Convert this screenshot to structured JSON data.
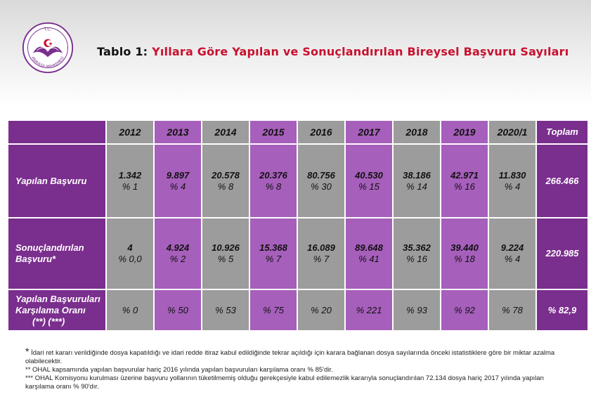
{
  "logo": {
    "top_text": "T.C.",
    "bottom_text": "ANAYASA MAHKEMESİ"
  },
  "title": {
    "prefix": "Tablo 1:",
    "main": "Yıllara Göre Yapılan ve Sonuçlandırılan Bireysel Başvuru Sayıları"
  },
  "table": {
    "years": [
      "2012",
      "2013",
      "2014",
      "2015",
      "2016",
      "2017",
      "2018",
      "2019",
      "2020/1"
    ],
    "total_header": "Toplam",
    "rows": [
      {
        "label": "Yapılan Başvuru",
        "counts": [
          "1.342",
          "9.897",
          "20.578",
          "20.376",
          "80.756",
          "40.530",
          "38.186",
          "42.971",
          "11.830"
        ],
        "percents": [
          "% 1",
          "% 4",
          "% 8",
          "% 8",
          "% 30",
          "% 15",
          "% 14",
          "% 16",
          "% 4"
        ],
        "total": "266.466"
      },
      {
        "label": "Sonuçlandırılan Başvuru*",
        "counts": [
          "4",
          "4.924",
          "10.926",
          "15.368",
          "16.089",
          "89.648",
          "35.362",
          "39.440",
          "9.224"
        ],
        "percents": [
          "% 0,0",
          "% 2",
          "% 5",
          "% 7",
          "% 7",
          "% 41",
          "% 16",
          "% 18",
          "% 4"
        ],
        "total": "220.985"
      },
      {
        "label": "Yapılan Başvuruları Karşılama Oranı",
        "label_sub": "(**) (***)",
        "values": [
          "% 0",
          "% 50",
          "% 53",
          "% 75",
          "% 20",
          "% 221",
          "% 93",
          "% 92",
          "% 78"
        ],
        "total": "% 82,9"
      }
    ]
  },
  "footnotes": {
    "f1_star": "*",
    "f1": "İdari ret kararı verildiğinde dosya kapatıldığı ve idari redde itiraz kabul edildiğinde tekrar açıldığı için karara bağlanan dosya sayılarında önceki istatistiklere göre bir miktar azalma olabilecektir.",
    "f2": "** OHAL kapsamında yapılan başvurular hariç 2016 yılında yapılan başvuruları karşılama oranı % 85'dir.",
    "f3": "*** OHAL Komisyonu kurulması üzerine başvuru yollarının tüketilmemiş olduğu gerekçesiyle kabul edilemezlik kararıyla sonuçlandırılan 72.134 dosya hariç 2017 yılında yapılan karşılama oranı % 90'dır."
  },
  "colors": {
    "purple": "#7a2e8d",
    "lavender": "#a65fbb",
    "gray": "#9c9c9c",
    "title_red": "#c8102e"
  }
}
